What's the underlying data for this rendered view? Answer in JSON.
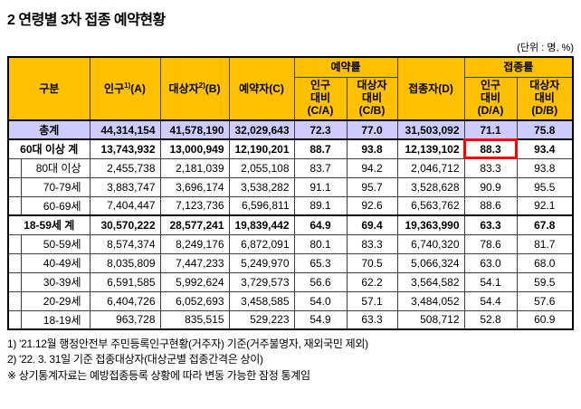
{
  "title": "2  연령별 3차 접종 예약현황",
  "unit_note": "(단위 : 명, %)",
  "colors": {
    "header_bg": "#ffc000",
    "total_row_bg": "#ccccff",
    "highlight_box": "#ff0000",
    "border": "#404040"
  },
  "table": {
    "headers": {
      "gubun": "구분",
      "population": {
        "label": "인구",
        "sup": "1)",
        "key": "(A)"
      },
      "target": {
        "label": "대상자",
        "sup": "2)",
        "key": "(B)"
      },
      "reserved": {
        "label": "예약자",
        "key": "(C)"
      },
      "reservation_rate": "예약률",
      "vaccinated": {
        "label": "접종자",
        "key": "(D)"
      },
      "vaccination_rate": "접종률",
      "res_pop_ratio": "인구\n대비\n(C/A)",
      "res_target_ratio": "대상자\n대비\n(C/B)",
      "vacc_pop_ratio": "인구\n대비\n(D/A)",
      "vacc_target_ratio": "대상자\n대비\n(D/B)"
    },
    "rows": [
      {
        "label": "총계",
        "type": "total",
        "pop": "44,314,154",
        "target": "41,578,190",
        "reserved": "32,029,643",
        "res_pop_rate": "72.3",
        "res_target_rate": "77.0",
        "vacc": "31,503,092",
        "vacc_pop_rate": "71.1",
        "vacc_target_rate": "75.8"
      },
      {
        "label": "60대 이상 계",
        "type": "subtotal",
        "highlight": "vacc_pop_rate",
        "pop": "13,743,932",
        "target": "13,000,949",
        "reserved": "12,190,201",
        "res_pop_rate": "88.7",
        "res_target_rate": "93.8",
        "vacc": "12,139,102",
        "vacc_pop_rate": "88.3",
        "vacc_target_rate": "93.4"
      },
      {
        "label": "80대 이상",
        "type": "detail",
        "pop": "2,455,738",
        "target": "2,181,039",
        "reserved": "2,055,108",
        "res_pop_rate": "83.7",
        "res_target_rate": "94.2",
        "vacc": "2,046,712",
        "vacc_pop_rate": "83.3",
        "vacc_target_rate": "93.8"
      },
      {
        "label": "70-79세",
        "type": "detail",
        "pop": "3,883,747",
        "target": "3,696,174",
        "reserved": "3,538,282",
        "res_pop_rate": "91.1",
        "res_target_rate": "95.7",
        "vacc": "3,528,628",
        "vacc_pop_rate": "90.9",
        "vacc_target_rate": "95.5"
      },
      {
        "label": "60-69세",
        "type": "detail",
        "pop": "7,404,447",
        "target": "7,123,736",
        "reserved": "6,596,811",
        "res_pop_rate": "89.1",
        "res_target_rate": "92.6",
        "vacc": "6,563,762",
        "vacc_pop_rate": "88.6",
        "vacc_target_rate": "92.1"
      },
      {
        "label": "18-59세 계",
        "type": "subtotal",
        "pop": "30,570,222",
        "target": "28,577,241",
        "reserved": "19,839,442",
        "res_pop_rate": "64.9",
        "res_target_rate": "69.4",
        "vacc": "19,363,990",
        "vacc_pop_rate": "63.3",
        "vacc_target_rate": "67.8"
      },
      {
        "label": "50-59세",
        "type": "detail",
        "pop": "8,574,374",
        "target": "8,249,176",
        "reserved": "6,872,091",
        "res_pop_rate": "80.1",
        "res_target_rate": "83.3",
        "vacc": "6,740,320",
        "vacc_pop_rate": "78.6",
        "vacc_target_rate": "81.7"
      },
      {
        "label": "40-49세",
        "type": "detail",
        "pop": "8,035,809",
        "target": "7,447,233",
        "reserved": "5,249,970",
        "res_pop_rate": "65.3",
        "res_target_rate": "70.5",
        "vacc": "5,066,324",
        "vacc_pop_rate": "63.0",
        "vacc_target_rate": "68.0"
      },
      {
        "label": "30-39세",
        "type": "detail",
        "pop": "6,591,585",
        "target": "5,992,624",
        "reserved": "3,729,573",
        "res_pop_rate": "56.6",
        "res_target_rate": "62.2",
        "vacc": "3,564,582",
        "vacc_pop_rate": "54.1",
        "vacc_target_rate": "59.5"
      },
      {
        "label": "20-29세",
        "type": "detail",
        "pop": "6,404,726",
        "target": "6,052,693",
        "reserved": "3,458,585",
        "res_pop_rate": "54.0",
        "res_target_rate": "57.1",
        "vacc": "3,484,052",
        "vacc_pop_rate": "54.4",
        "vacc_target_rate": "57.6"
      },
      {
        "label": "18-19세",
        "type": "detail",
        "pop": "963,728",
        "target": "835,515",
        "reserved": "529,223",
        "res_pop_rate": "54.9",
        "res_target_rate": "63.3",
        "vacc": "508,712",
        "vacc_pop_rate": "52.8",
        "vacc_target_rate": "60.9"
      }
    ]
  },
  "footnotes": [
    "1) '21.12월 행정안전부 주민등록인구현황(거주자) 기준(거주불명자, 재외국민 제외)",
    "2) '22. 3. 31일 기준 접종대상자(대상군별 접종간격은 상이)",
    "※ 상기통계자료는 예방접종등록 상황에 따라 변동 가능한 잠정 통계임"
  ]
}
